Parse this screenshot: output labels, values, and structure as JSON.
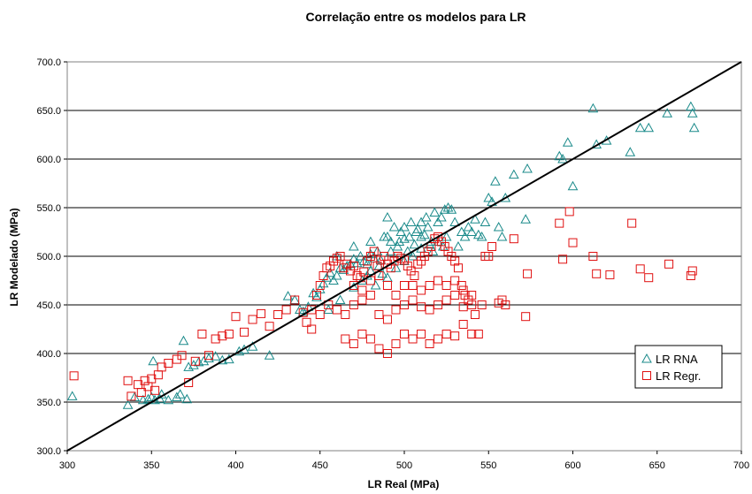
{
  "chart_data": {
    "type": "scatter",
    "title": "Correlação entre os modelos para LR",
    "xlabel": "LR Real (MPa)",
    "ylabel": "LR Modelado (MPa)",
    "xlim": [
      300,
      700
    ],
    "ylim": [
      300,
      700
    ],
    "x_ticks": [
      "300",
      "350",
      "400",
      "450",
      "500",
      "550",
      "600",
      "650",
      "700"
    ],
    "y_ticks": [
      "300.0",
      "350.0",
      "400.0",
      "450.0",
      "500.0",
      "550.0",
      "600.0",
      "650.0",
      "700.0"
    ],
    "grid": "horizontal",
    "legend_position": "bottom-right",
    "reference_line": [
      [
        300,
        300
      ],
      [
        700,
        700
      ]
    ],
    "series": [
      {
        "name": "LR RNA",
        "marker": "triangle",
        "color": "#1a8a8a",
        "points": [
          [
            303,
            356
          ],
          [
            336,
            347
          ],
          [
            340,
            355
          ],
          [
            345,
            352
          ],
          [
            348,
            353
          ],
          [
            350,
            355
          ],
          [
            351,
            392
          ],
          [
            352,
            352
          ],
          [
            355,
            353
          ],
          [
            356,
            358
          ],
          [
            360,
            352
          ],
          [
            365,
            355
          ],
          [
            367,
            358
          ],
          [
            369,
            413
          ],
          [
            371,
            353
          ],
          [
            372,
            386
          ],
          [
            375,
            388
          ],
          [
            378,
            391
          ],
          [
            381,
            392
          ],
          [
            384,
            395
          ],
          [
            388,
            397
          ],
          [
            392,
            393
          ],
          [
            396,
            394
          ],
          [
            402,
            402
          ],
          [
            405,
            404
          ],
          [
            410,
            407
          ],
          [
            420,
            398
          ],
          [
            431,
            459
          ],
          [
            435,
            455
          ],
          [
            438,
            445
          ],
          [
            440,
            443
          ],
          [
            443,
            448
          ],
          [
            446,
            462
          ],
          [
            448,
            458
          ],
          [
            450,
            466
          ],
          [
            452,
            472
          ],
          [
            454,
            478
          ],
          [
            456,
            483
          ],
          [
            458,
            475
          ],
          [
            460,
            480
          ],
          [
            462,
            488
          ],
          [
            464,
            486
          ],
          [
            466,
            490
          ],
          [
            468,
            492
          ],
          [
            470,
            497
          ],
          [
            472,
            493
          ],
          [
            474,
            500
          ],
          [
            476,
            495
          ],
          [
            478,
            492
          ],
          [
            480,
            502
          ],
          [
            482,
            498
          ],
          [
            484,
            505
          ],
          [
            486,
            496
          ],
          [
            488,
            520
          ],
          [
            490,
            540
          ],
          [
            492,
            515
          ],
          [
            494,
            530
          ],
          [
            496,
            510
          ],
          [
            498,
            525
          ],
          [
            500,
            518
          ],
          [
            502,
            505
          ],
          [
            504,
            535
          ],
          [
            506,
            512
          ],
          [
            508,
            528
          ],
          [
            510,
            520
          ],
          [
            512,
            522
          ],
          [
            514,
            530
          ],
          [
            516,
            515
          ],
          [
            518,
            545
          ],
          [
            520,
            535
          ],
          [
            522,
            540
          ],
          [
            524,
            548
          ],
          [
            526,
            550
          ],
          [
            528,
            548
          ],
          [
            530,
            535
          ],
          [
            532,
            510
          ],
          [
            534,
            525
          ],
          [
            536,
            520
          ],
          [
            538,
            530
          ],
          [
            540,
            525
          ],
          [
            542,
            538
          ],
          [
            544,
            522
          ],
          [
            546,
            520
          ],
          [
            548,
            535
          ],
          [
            550,
            560
          ],
          [
            552,
            556
          ],
          [
            554,
            577
          ],
          [
            556,
            530
          ],
          [
            558,
            520
          ],
          [
            560,
            560
          ],
          [
            565,
            584
          ],
          [
            572,
            538
          ],
          [
            573,
            590
          ],
          [
            592,
            603
          ],
          [
            594,
            600
          ],
          [
            597,
            617
          ],
          [
            600,
            572
          ],
          [
            612,
            652
          ],
          [
            614,
            615
          ],
          [
            620,
            619
          ],
          [
            634,
            607
          ],
          [
            640,
            632
          ],
          [
            645,
            632
          ],
          [
            656,
            647
          ],
          [
            670,
            654
          ],
          [
            671,
            647
          ],
          [
            672,
            632
          ],
          [
            455,
            445
          ],
          [
            462,
            455
          ],
          [
            470,
            468
          ],
          [
            475,
            475
          ],
          [
            480,
            485
          ],
          [
            485,
            490
          ],
          [
            490,
            478
          ],
          [
            495,
            488
          ],
          [
            500,
            495
          ],
          [
            505,
            500
          ],
          [
            510,
            508
          ],
          [
            515,
            512
          ],
          [
            520,
            515
          ],
          [
            525,
            520
          ],
          [
            470,
            510
          ],
          [
            480,
            515
          ],
          [
            490,
            520
          ],
          [
            500,
            530
          ],
          [
            510,
            535
          ],
          [
            460,
            500
          ],
          [
            478,
            480
          ],
          [
            483,
            470
          ],
          [
            487,
            482
          ],
          [
            492,
            505
          ],
          [
            497,
            515
          ],
          [
            503,
            520
          ],
          [
            507,
            525
          ],
          [
            513,
            540
          ],
          [
            517,
            505
          ],
          [
            523,
            510
          ]
        ]
      },
      {
        "name": "LR Regr.",
        "marker": "square",
        "color": "#e01010",
        "points": [
          [
            304,
            377
          ],
          [
            336,
            372
          ],
          [
            338,
            356
          ],
          [
            342,
            368
          ],
          [
            344,
            360
          ],
          [
            346,
            372
          ],
          [
            348,
            366
          ],
          [
            350,
            374
          ],
          [
            352,
            362
          ],
          [
            354,
            378
          ],
          [
            356,
            386
          ],
          [
            360,
            390
          ],
          [
            365,
            394
          ],
          [
            368,
            398
          ],
          [
            372,
            370
          ],
          [
            376,
            392
          ],
          [
            380,
            420
          ],
          [
            384,
            398
          ],
          [
            388,
            415
          ],
          [
            392,
            418
          ],
          [
            396,
            420
          ],
          [
            400,
            438
          ],
          [
            405,
            422
          ],
          [
            410,
            435
          ],
          [
            415,
            441
          ],
          [
            420,
            428
          ],
          [
            425,
            440
          ],
          [
            430,
            445
          ],
          [
            435,
            455
          ],
          [
            440,
            442
          ],
          [
            442,
            432
          ],
          [
            445,
            425
          ],
          [
            448,
            460
          ],
          [
            450,
            470
          ],
          [
            452,
            480
          ],
          [
            454,
            488
          ],
          [
            456,
            490
          ],
          [
            458,
            495
          ],
          [
            460,
            498
          ],
          [
            462,
            500
          ],
          [
            464,
            488
          ],
          [
            466,
            492
          ],
          [
            468,
            485
          ],
          [
            470,
            490
          ],
          [
            472,
            480
          ],
          [
            474,
            478
          ],
          [
            476,
            484
          ],
          [
            478,
            495
          ],
          [
            480,
            500
          ],
          [
            482,
            505
          ],
          [
            484,
            490
          ],
          [
            486,
            496
          ],
          [
            488,
            500
          ],
          [
            490,
            492
          ],
          [
            492,
            488
          ],
          [
            494,
            495
          ],
          [
            496,
            500
          ],
          [
            498,
            498
          ],
          [
            500,
            496
          ],
          [
            502,
            490
          ],
          [
            504,
            485
          ],
          [
            506,
            480
          ],
          [
            508,
            492
          ],
          [
            510,
            495
          ],
          [
            512,
            500
          ],
          [
            514,
            505
          ],
          [
            516,
            510
          ],
          [
            518,
            518
          ],
          [
            520,
            520
          ],
          [
            522,
            515
          ],
          [
            524,
            510
          ],
          [
            526,
            505
          ],
          [
            528,
            500
          ],
          [
            530,
            495
          ],
          [
            532,
            488
          ],
          [
            534,
            470
          ],
          [
            536,
            460
          ],
          [
            538,
            455
          ],
          [
            540,
            450
          ],
          [
            542,
            440
          ],
          [
            544,
            420
          ],
          [
            546,
            450
          ],
          [
            548,
            500
          ],
          [
            550,
            500
          ],
          [
            552,
            510
          ],
          [
            556,
            452
          ],
          [
            558,
            455
          ],
          [
            560,
            450
          ],
          [
            565,
            518
          ],
          [
            572,
            438
          ],
          [
            573,
            482
          ],
          [
            592,
            534
          ],
          [
            594,
            497
          ],
          [
            598,
            546
          ],
          [
            600,
            514
          ],
          [
            612,
            500
          ],
          [
            614,
            482
          ],
          [
            622,
            481
          ],
          [
            635,
            534
          ],
          [
            640,
            487
          ],
          [
            645,
            478
          ],
          [
            657,
            492
          ],
          [
            670,
            480
          ],
          [
            671,
            485
          ],
          [
            465,
            415
          ],
          [
            470,
            410
          ],
          [
            475,
            420
          ],
          [
            480,
            415
          ],
          [
            485,
            405
          ],
          [
            490,
            400
          ],
          [
            495,
            410
          ],
          [
            500,
            420
          ],
          [
            505,
            415
          ],
          [
            510,
            420
          ],
          [
            515,
            410
          ],
          [
            520,
            415
          ],
          [
            525,
            420
          ],
          [
            530,
            418
          ],
          [
            535,
            430
          ],
          [
            540,
            420
          ],
          [
            485,
            440
          ],
          [
            490,
            435
          ],
          [
            495,
            445
          ],
          [
            500,
            450
          ],
          [
            505,
            455
          ],
          [
            510,
            448
          ],
          [
            515,
            445
          ],
          [
            520,
            450
          ],
          [
            525,
            455
          ],
          [
            530,
            460
          ],
          [
            535,
            448
          ],
          [
            480,
            460
          ],
          [
            475,
            455
          ],
          [
            470,
            450
          ],
          [
            465,
            440
          ],
          [
            460,
            445
          ],
          [
            455,
            450
          ],
          [
            450,
            440
          ],
          [
            445,
            445
          ],
          [
            470,
            470
          ],
          [
            475,
            465
          ],
          [
            480,
            475
          ],
          [
            485,
            480
          ],
          [
            490,
            470
          ],
          [
            495,
            460
          ],
          [
            500,
            470
          ],
          [
            505,
            470
          ],
          [
            510,
            465
          ],
          [
            515,
            470
          ],
          [
            520,
            475
          ],
          [
            525,
            470
          ],
          [
            530,
            475
          ],
          [
            535,
            465
          ],
          [
            540,
            460
          ]
        ]
      }
    ]
  }
}
